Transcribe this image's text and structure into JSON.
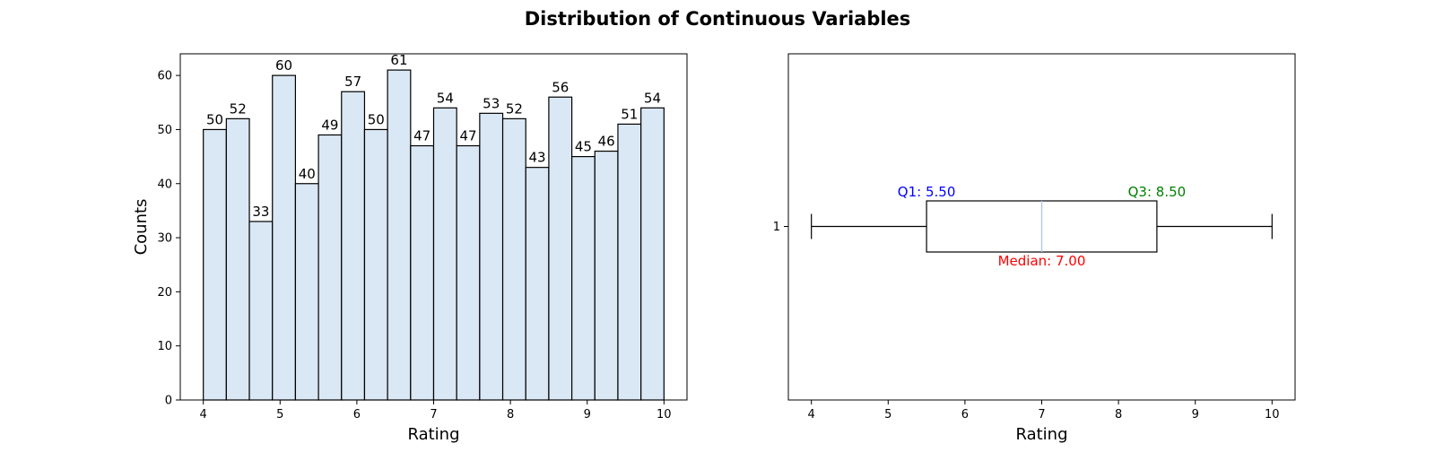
{
  "figure": {
    "title": "Distribution of Continuous Variables"
  },
  "chart_data": [
    {
      "type": "bar",
      "subtype": "histogram",
      "title": "",
      "xlabel": "Rating",
      "ylabel": "Counts",
      "bin_edges": [
        4.0,
        4.3,
        4.6,
        4.9,
        5.2,
        5.5,
        5.8,
        6.1,
        6.4,
        6.7,
        7.0,
        7.3,
        7.6,
        7.9,
        8.2,
        8.5,
        8.8,
        9.1,
        9.4,
        9.7,
        10.0
      ],
      "values": [
        50,
        52,
        33,
        60,
        40,
        49,
        57,
        50,
        61,
        47,
        54,
        47,
        53,
        52,
        43,
        56,
        45,
        46,
        51,
        54
      ],
      "xlim": [
        3.7,
        10.3
      ],
      "ylim": [
        0,
        64
      ],
      "xticks": [
        4,
        5,
        6,
        7,
        8,
        9,
        10
      ],
      "yticks": [
        0,
        10,
        20,
        30,
        40,
        50,
        60
      ],
      "bar_color": "#dae7f4",
      "edge_color": "#000000",
      "grid": false
    },
    {
      "type": "box",
      "title": "",
      "xlabel": "Rating",
      "ylabel": "",
      "orientation": "horizontal",
      "category": "1",
      "min": 4.0,
      "q1": 5.5,
      "median": 7.0,
      "q3": 8.5,
      "max": 10.0,
      "xlim": [
        3.7,
        10.3
      ],
      "xticks": [
        4,
        5,
        6,
        7,
        8,
        9,
        10
      ],
      "median_color": "#aec7e8",
      "annotations": [
        {
          "label": "Q1: 5.50",
          "value": 5.5,
          "color": "#0000ff"
        },
        {
          "label": "Median: 7.00",
          "value": 7.0,
          "color": "#ff0000"
        },
        {
          "label": "Q3: 8.50",
          "value": 8.5,
          "color": "#008000"
        }
      ],
      "grid": false
    }
  ]
}
